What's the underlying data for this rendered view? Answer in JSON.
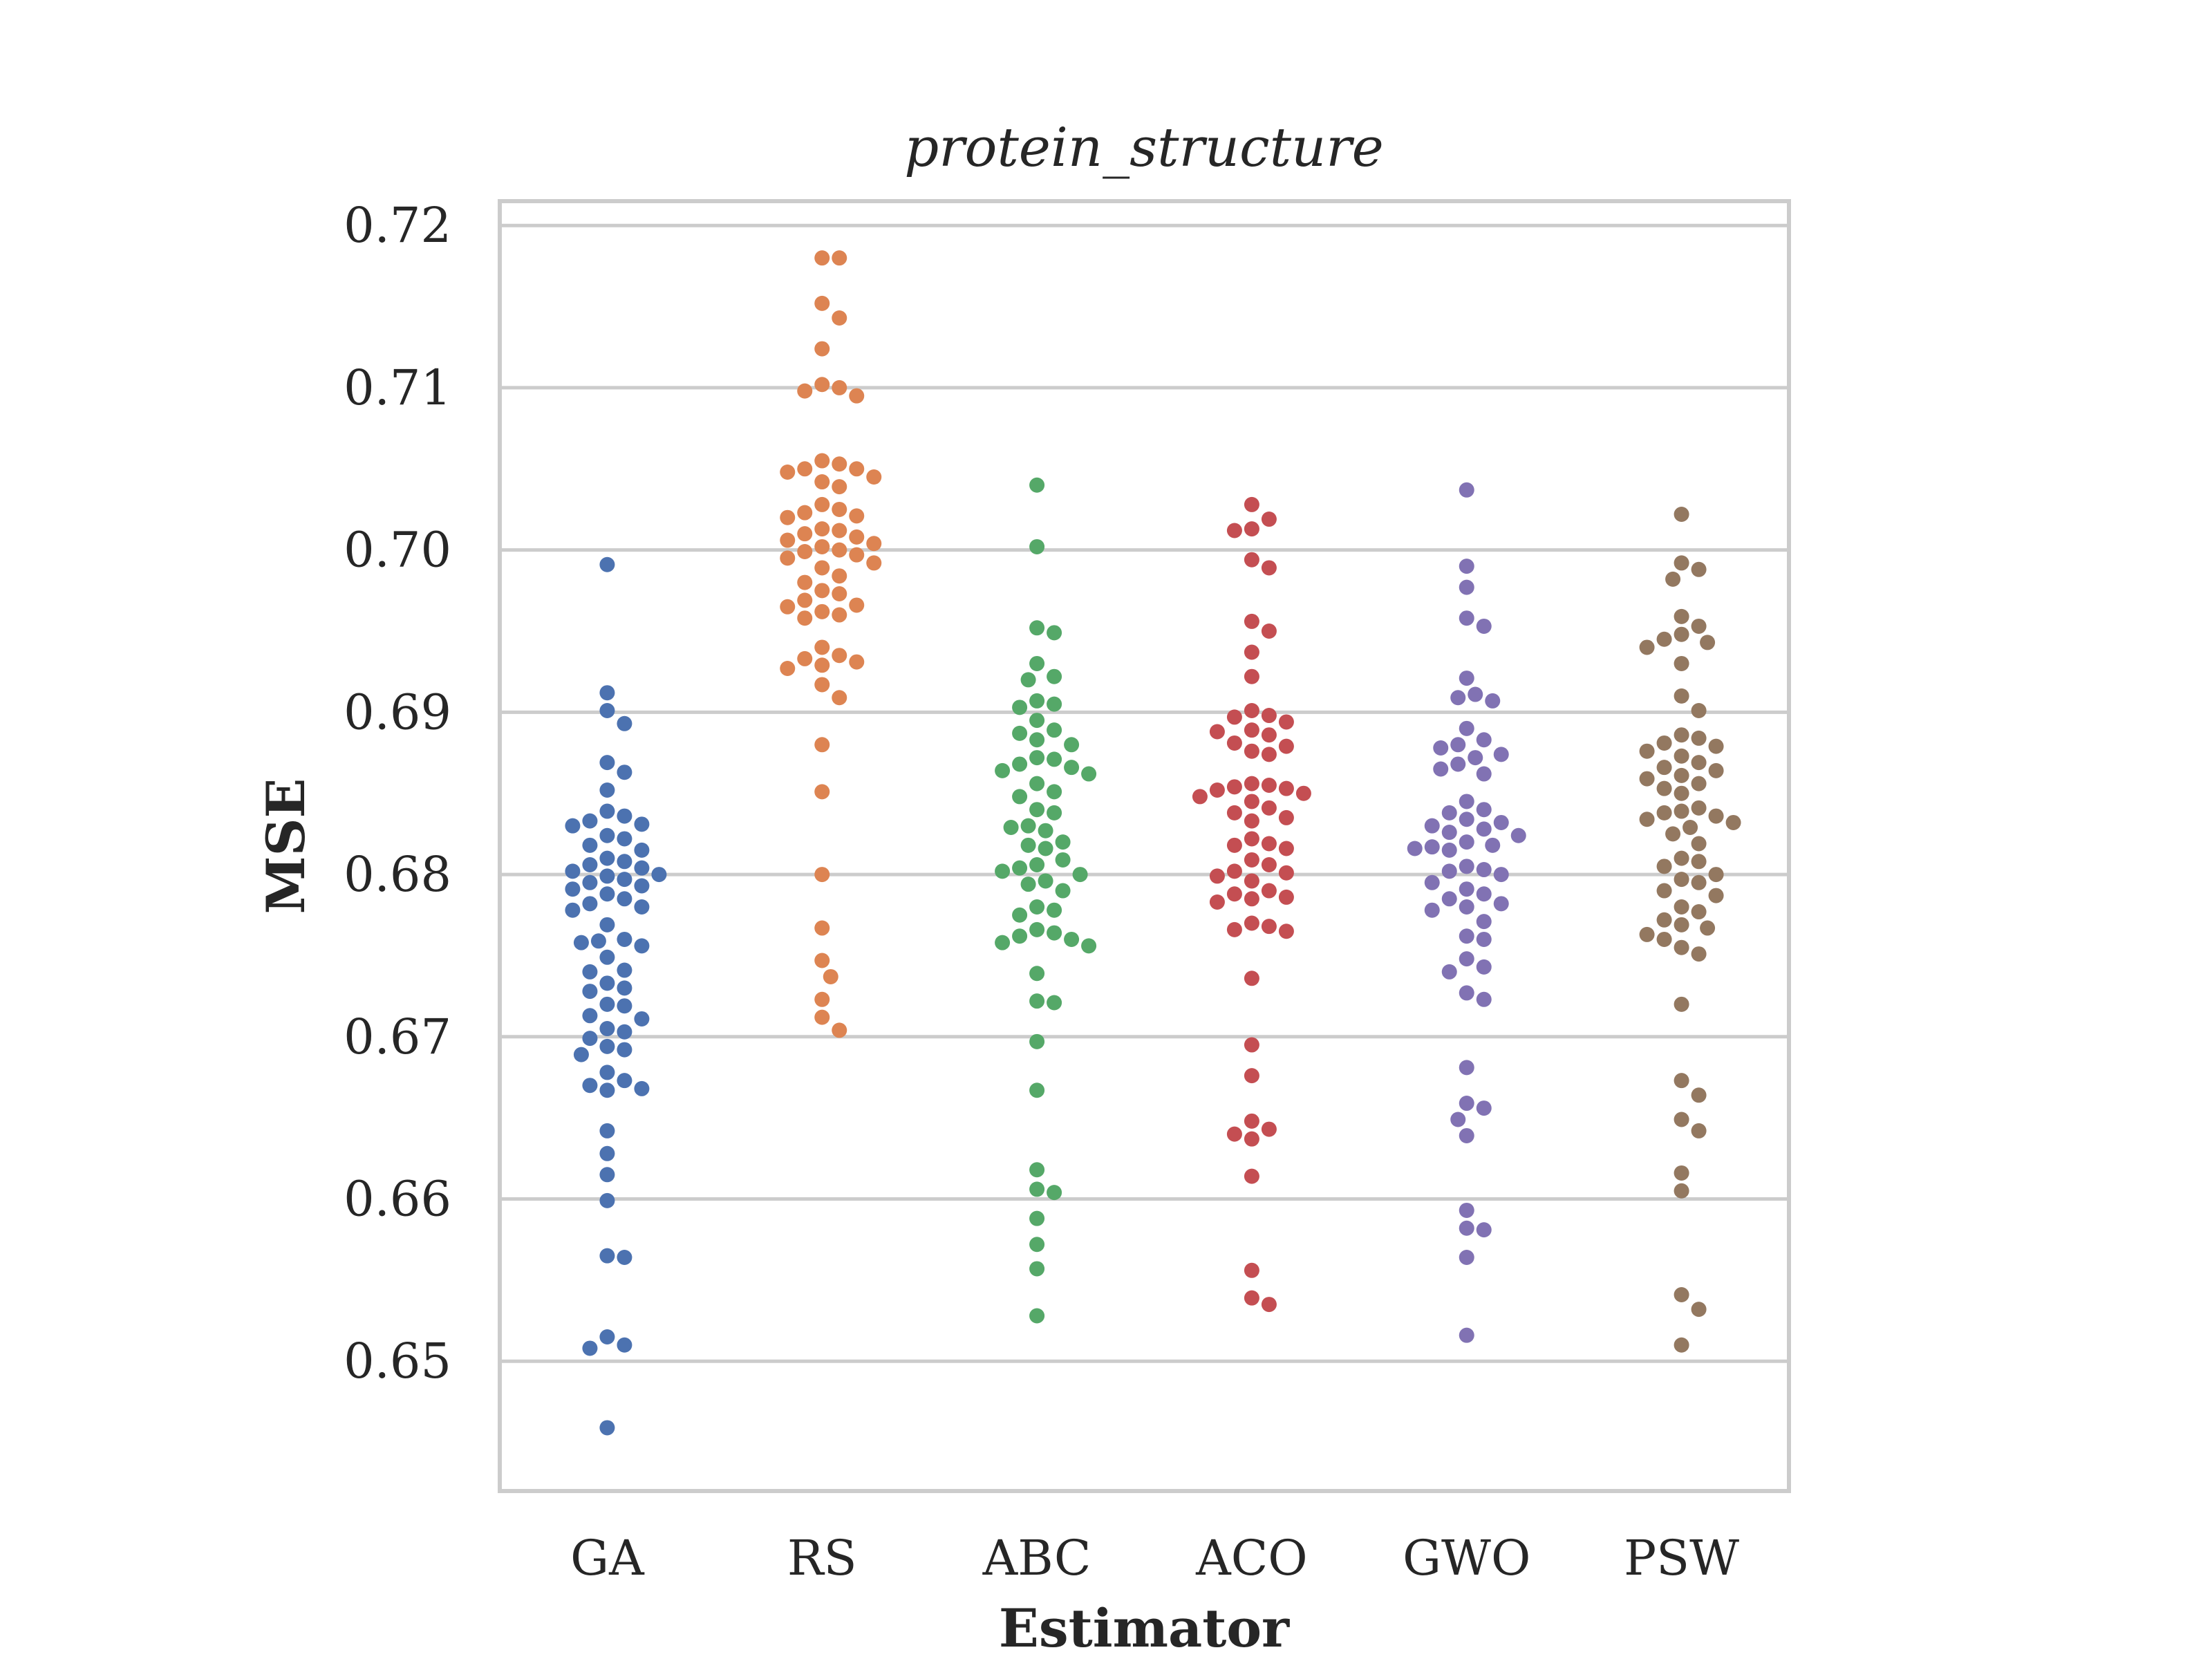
{
  "chart_data": {
    "type": "scatter",
    "subtype": "swarm",
    "title": "protein_structure",
    "xlabel": "Estimator",
    "ylabel": "MSE",
    "ylim": [
      0.642,
      0.7215
    ],
    "yticks": [
      0.65,
      0.66,
      0.67,
      0.68,
      0.69,
      0.7,
      0.71,
      0.72
    ],
    "ytick_labels": [
      "0.65",
      "0.66",
      "0.67",
      "0.68",
      "0.69",
      "0.70",
      "0.71",
      "0.72"
    ],
    "grid": true,
    "categories": [
      "GA",
      "RS",
      "ABC",
      "ACO",
      "GWO",
      "PSW"
    ],
    "colors": [
      "#4c72b0",
      "#dd8452",
      "#55a868",
      "#c44e52",
      "#8172b3",
      "#937860"
    ],
    "series": [
      {
        "category": "GA",
        "values": [
          0.6991,
          0.6912,
          0.6901,
          0.6893,
          0.6869,
          0.6863,
          0.6852,
          0.6839,
          0.6836,
          0.6833,
          0.6831,
          0.683,
          0.6824,
          0.6822,
          0.6818,
          0.6815,
          0.681,
          0.6808,
          0.6806,
          0.6804,
          0.6802,
          0.68,
          0.6799,
          0.6797,
          0.6795,
          0.6793,
          0.6791,
          0.6788,
          0.6785,
          0.6782,
          0.678,
          0.6778,
          0.6769,
          0.676,
          0.6759,
          0.6758,
          0.6756,
          0.6749,
          0.6741,
          0.674,
          0.6733,
          0.673,
          0.6728,
          0.672,
          0.6719,
          0.6713,
          0.6711,
          0.6705,
          0.6703,
          0.6699,
          0.6694,
          0.6692,
          0.6689,
          0.6678,
          0.6673,
          0.667,
          0.6668,
          0.6667,
          0.6642,
          0.6628,
          0.6615,
          0.6599,
          0.6565,
          0.6564,
          0.6515,
          0.651,
          0.6508,
          0.6459
        ]
      },
      {
        "category": "RS",
        "values": [
          0.718,
          0.718,
          0.7152,
          0.7143,
          0.7124,
          0.7102,
          0.71,
          0.7098,
          0.7095,
          0.7055,
          0.7053,
          0.705,
          0.705,
          0.7048,
          0.7045,
          0.7042,
          0.7039,
          0.7028,
          0.7025,
          0.7023,
          0.7021,
          0.702,
          0.7013,
          0.7012,
          0.701,
          0.7008,
          0.7006,
          0.7004,
          0.7002,
          0.7,
          0.6999,
          0.6997,
          0.6995,
          0.6992,
          0.6989,
          0.6984,
          0.698,
          0.6975,
          0.6973,
          0.6969,
          0.6966,
          0.6965,
          0.6962,
          0.696,
          0.6958,
          0.694,
          0.6935,
          0.6933,
          0.6931,
          0.6929,
          0.6927,
          0.6917,
          0.6909,
          0.688,
          0.6851,
          0.68,
          0.6767,
          0.6747,
          0.6737,
          0.6723,
          0.6712,
          0.6704
        ]
      },
      {
        "category": "ABC",
        "values": [
          0.704,
          0.7002,
          0.6952,
          0.6949,
          0.693,
          0.6922,
          0.692,
          0.6907,
          0.6905,
          0.6903,
          0.6895,
          0.6889,
          0.6887,
          0.6883,
          0.688,
          0.6872,
          0.6871,
          0.6868,
          0.6866,
          0.6864,
          0.6862,
          0.6856,
          0.6851,
          0.6848,
          0.684,
          0.6838,
          0.683,
          0.6829,
          0.6827,
          0.682,
          0.6818,
          0.6816,
          0.6809,
          0.6806,
          0.6804,
          0.6802,
          0.68,
          0.6796,
          0.6794,
          0.679,
          0.678,
          0.6778,
          0.6775,
          0.6766,
          0.6764,
          0.6762,
          0.676,
          0.6758,
          0.6756,
          0.6739,
          0.6722,
          0.6721,
          0.6697,
          0.6667,
          0.6618,
          0.6606,
          0.6604,
          0.6588,
          0.6572,
          0.6557,
          0.6528
        ]
      },
      {
        "category": "ACO",
        "values": [
          0.7028,
          0.7019,
          0.7013,
          0.7012,
          0.6994,
          0.6989,
          0.6956,
          0.695,
          0.6937,
          0.6922,
          0.6901,
          0.6898,
          0.6897,
          0.6894,
          0.6889,
          0.6888,
          0.6886,
          0.6881,
          0.6879,
          0.6876,
          0.6874,
          0.6856,
          0.6855,
          0.6854,
          0.6853,
          0.6852,
          0.685,
          0.6848,
          0.6845,
          0.6841,
          0.6838,
          0.6835,
          0.6833,
          0.6822,
          0.6819,
          0.6818,
          0.6816,
          0.6809,
          0.6806,
          0.6802,
          0.6801,
          0.6799,
          0.6796,
          0.679,
          0.6788,
          0.6786,
          0.6785,
          0.6783,
          0.677,
          0.6768,
          0.6766,
          0.6765,
          0.6736,
          0.6695,
          0.6676,
          0.6648,
          0.6643,
          0.664,
          0.6637,
          0.6614,
          0.6556,
          0.6539,
          0.6535
        ]
      },
      {
        "category": "GWO",
        "values": [
          0.7037,
          0.699,
          0.6977,
          0.6958,
          0.6953,
          0.6921,
          0.6911,
          0.6909,
          0.6907,
          0.689,
          0.6883,
          0.688,
          0.6878,
          0.6874,
          0.6872,
          0.6868,
          0.6865,
          0.6862,
          0.6845,
          0.684,
          0.6838,
          0.6834,
          0.6832,
          0.683,
          0.6828,
          0.6826,
          0.6824,
          0.682,
          0.6818,
          0.6817,
          0.6816,
          0.6815,
          0.6805,
          0.6803,
          0.6802,
          0.68,
          0.6795,
          0.6791,
          0.6788,
          0.6785,
          0.6782,
          0.678,
          0.6778,
          0.6771,
          0.6762,
          0.676,
          0.6748,
          0.6743,
          0.674,
          0.6727,
          0.6723,
          0.6681,
          0.6659,
          0.6656,
          0.6649,
          0.6639,
          0.6593,
          0.6582,
          0.6581,
          0.6564,
          0.6516
        ]
      },
      {
        "category": "PSW",
        "values": [
          0.7022,
          0.6992,
          0.6988,
          0.6982,
          0.6959,
          0.6953,
          0.6948,
          0.6945,
          0.6943,
          0.694,
          0.693,
          0.691,
          0.6901,
          0.6886,
          0.6884,
          0.6881,
          0.6879,
          0.6876,
          0.6873,
          0.6869,
          0.6866,
          0.6864,
          0.6861,
          0.6859,
          0.6856,
          0.6853,
          0.685,
          0.6841,
          0.6839,
          0.6838,
          0.6836,
          0.6834,
          0.6832,
          0.6829,
          0.6825,
          0.6819,
          0.681,
          0.6808,
          0.6805,
          0.68,
          0.6797,
          0.6795,
          0.679,
          0.6787,
          0.678,
          0.6777,
          0.6772,
          0.6769,
          0.6767,
          0.6763,
          0.676,
          0.6755,
          0.6751,
          0.672,
          0.6673,
          0.6664,
          0.6649,
          0.6642,
          0.6616,
          0.6605,
          0.6541,
          0.6532,
          0.651
        ]
      }
    ]
  }
}
